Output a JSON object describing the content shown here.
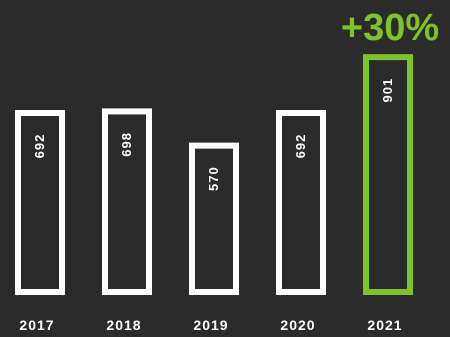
{
  "chart_data": {
    "type": "bar",
    "categories": [
      "2017",
      "2018",
      "2019",
      "2020",
      "2021"
    ],
    "values": [
      692,
      698,
      570,
      692,
      901
    ],
    "title": "",
    "xlabel": "",
    "ylabel": "",
    "grid": false,
    "annotation": "+30%",
    "highlight_index": 4,
    "colors": {
      "background": "#2b2b2b",
      "bar_outline": "#ffffff",
      "highlight": "#7dc42b",
      "category_text": "#ffffff"
    }
  }
}
